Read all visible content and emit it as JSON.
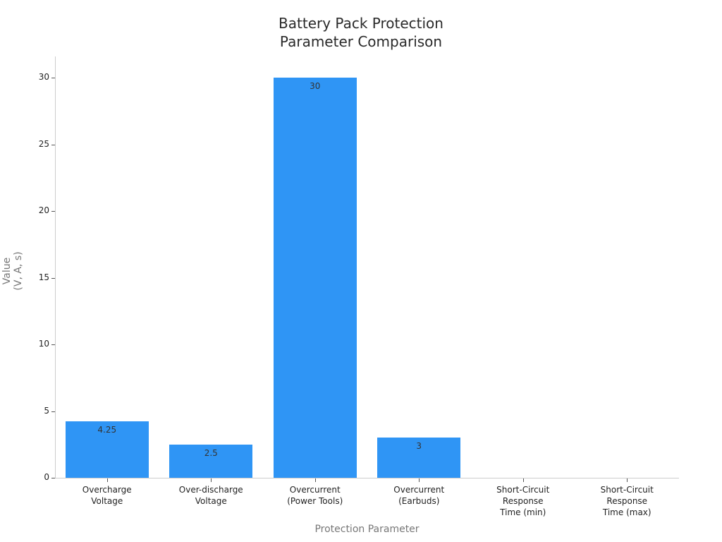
{
  "chart_data": {
    "type": "bar",
    "title": "Battery Pack Protection\nParameter Comparison",
    "title_lines": [
      "Battery Pack Protection",
      "Parameter Comparison"
    ],
    "xlabel": "Protection Parameter",
    "ylabel_lines": [
      "Value",
      "(V, A, s)"
    ],
    "categories": [
      "Overcharge Voltage",
      "Over-discharge Voltage",
      "Overcurrent (Power Tools)",
      "Overcurrent (Earbuds)",
      "Short-Circuit Response Time (min)",
      "Short-Circuit Response Time (max)"
    ],
    "category_labels": [
      "Overcharge\nVoltage",
      "Over-discharge\nVoltage",
      "Overcurrent\n(Power Tools)",
      "Overcurrent\n(Earbuds)",
      "Short-Circuit\nResponse\nTime (min)",
      "Short-Circuit\nResponse\nTime (max)"
    ],
    "values": [
      4.25,
      2.5,
      30,
      3,
      0,
      0
    ],
    "data_labels": [
      "4.25",
      "2.5",
      "30",
      "3",
      "",
      ""
    ],
    "yticks": [
      0,
      5,
      10,
      15,
      20,
      25,
      30
    ],
    "ylim": [
      0,
      31.5
    ],
    "grid": false,
    "legend": null,
    "bar_color": "#2f95f5"
  }
}
